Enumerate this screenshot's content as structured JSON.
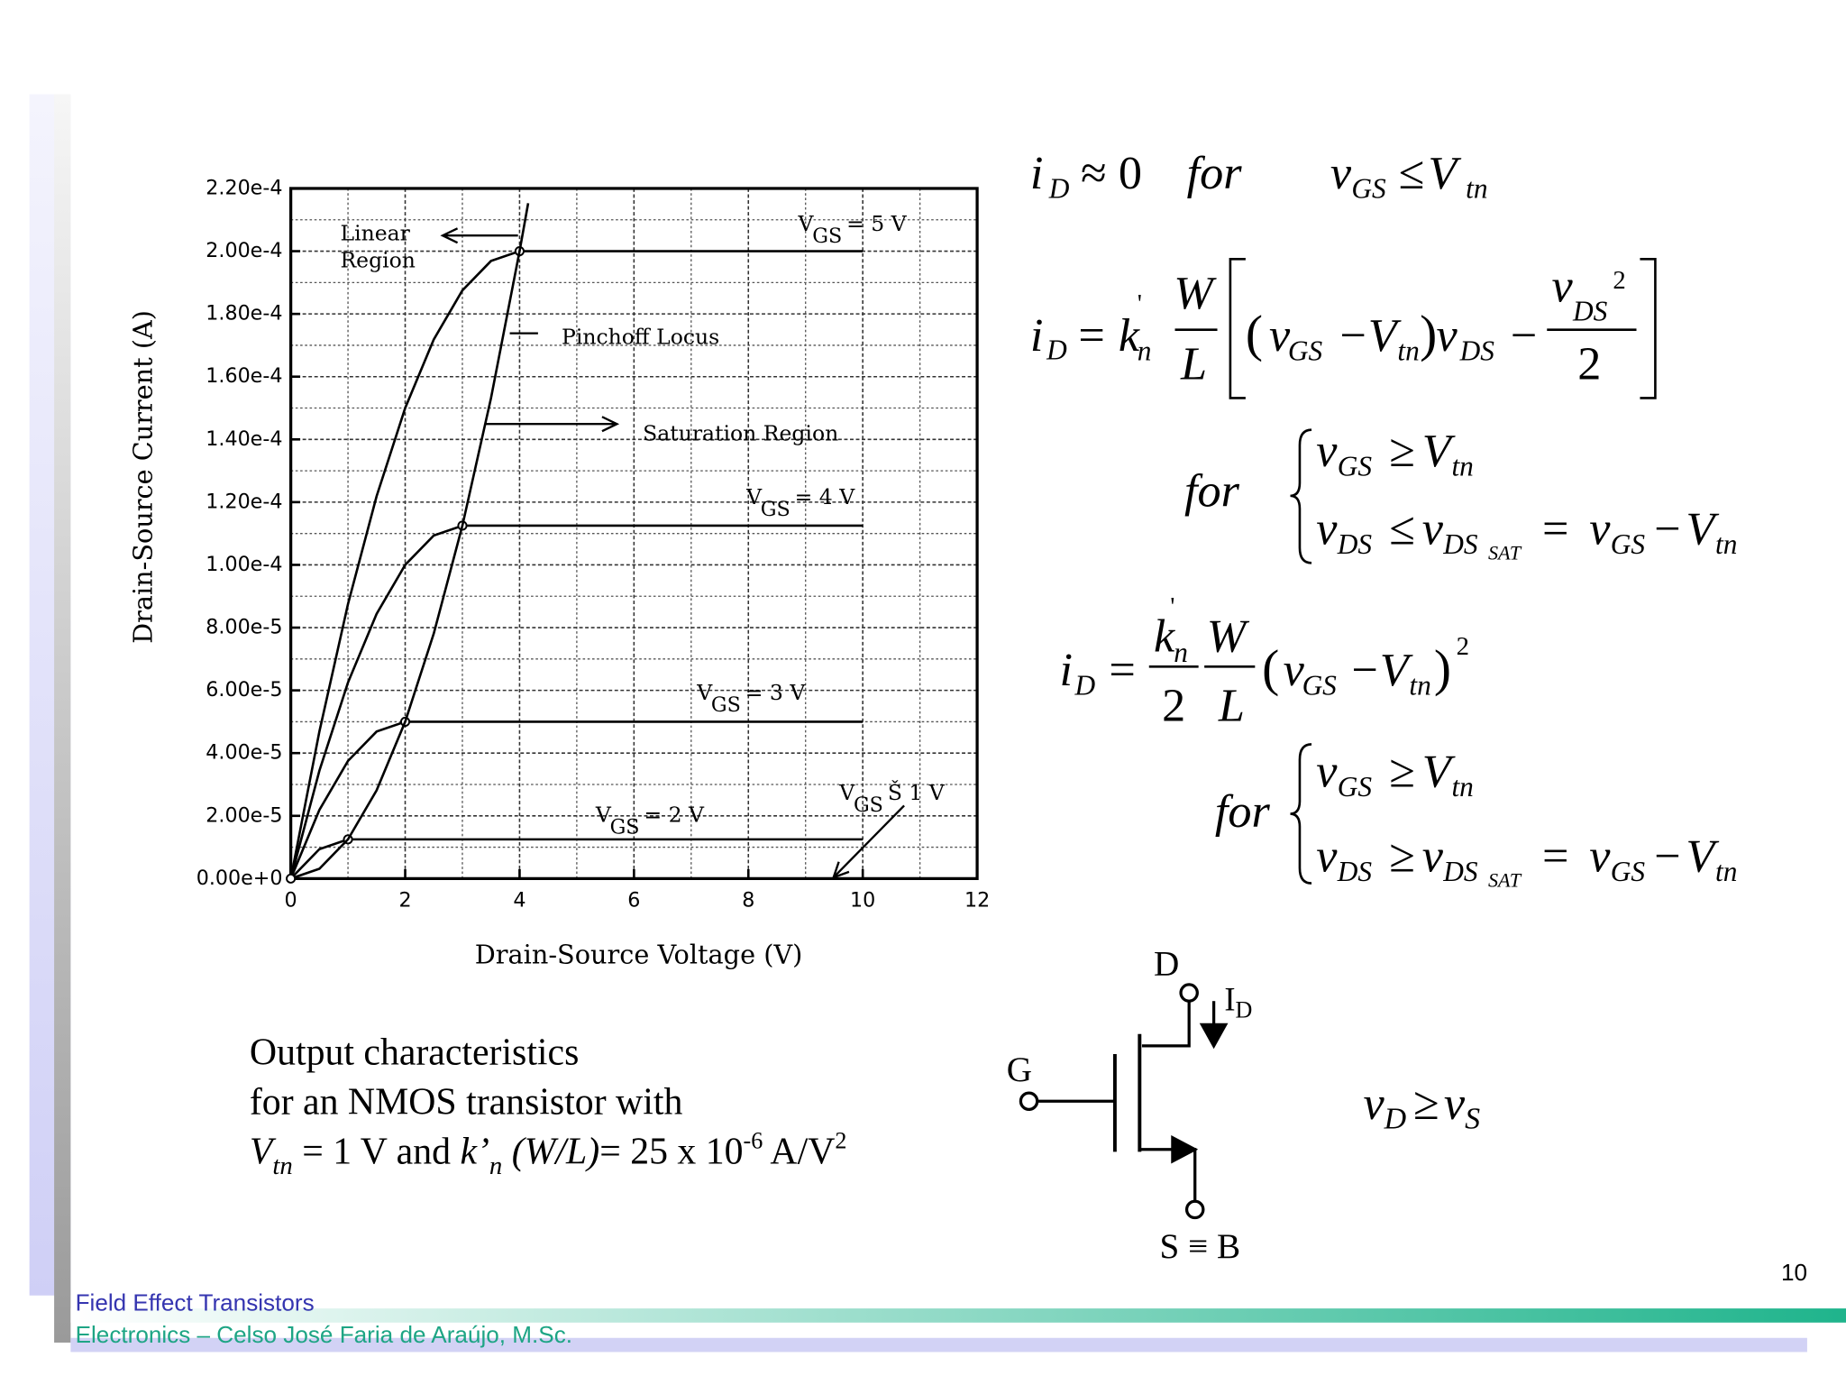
{
  "chart_data": {
    "type": "line",
    "xlabel": "Drain-Source Voltage (V)",
    "ylabel": "Drain-Source Current (A)",
    "xlim": [
      0,
      12
    ],
    "xticks": [
      0,
      2,
      4,
      6,
      8,
      10,
      12
    ],
    "xminor": [
      1,
      3,
      5,
      7,
      9,
      11
    ],
    "ylim": [
      0,
      0.00022
    ],
    "yticks": [
      {
        "value": 0,
        "label": "0.00e+0"
      },
      {
        "value": 2e-05,
        "label": "2.00e-5"
      },
      {
        "value": 4e-05,
        "label": "4.00e-5"
      },
      {
        "value": 6e-05,
        "label": "6.00e-5"
      },
      {
        "value": 8e-05,
        "label": "8.00e-5"
      },
      {
        "value": 0.0001,
        "label": "1.00e-4"
      },
      {
        "value": 0.00012,
        "label": "1.20e-4"
      },
      {
        "value": 0.00014,
        "label": "1.40e-4"
      },
      {
        "value": 0.00016,
        "label": "1.60e-4"
      },
      {
        "value": 0.00018,
        "label": "1.80e-4"
      },
      {
        "value": 0.0002,
        "label": "2.00e-4"
      },
      {
        "value": 0.00022,
        "label": "2.20e-4"
      }
    ],
    "yminor": [
      1e-05,
      3e-05,
      5e-05,
      7e-05,
      9e-05,
      0.00011,
      0.00013,
      0.00015,
      0.00017,
      0.00019,
      0.00021
    ],
    "grid": true,
    "x": [
      0,
      0.5,
      1,
      1.5,
      2,
      2.5,
      3,
      3.5,
      4,
      5,
      6,
      7,
      8,
      9,
      10
    ],
    "series": [
      {
        "label": [
          "V",
          "GS",
          "= 5 V"
        ],
        "color": "#000000",
        "values": [
          0,
          4.6875e-05,
          8.75e-05,
          0.000121875,
          0.00015,
          0.000171875,
          0.0001875,
          0.000196875,
          0.0002,
          0.0002,
          0.0002,
          0.0002,
          0.0002,
          0.0002,
          0.0002
        ]
      },
      {
        "label": [
          "V",
          "GS",
          "= 4 V"
        ],
        "color": "#000000",
        "values": [
          0,
          3.4375e-05,
          6.25e-05,
          8.4375e-05,
          0.0001,
          0.000109375,
          0.0001125,
          0.0001125,
          0.0001125,
          0.0001125,
          0.0001125,
          0.0001125,
          0.0001125,
          0.0001125,
          0.0001125
        ]
      },
      {
        "label": [
          "V",
          "GS",
          "= 3 V"
        ],
        "color": "#000000",
        "values": [
          0,
          2.1875e-05,
          3.75e-05,
          4.6875e-05,
          5e-05,
          5e-05,
          5e-05,
          5e-05,
          5e-05,
          5e-05,
          5e-05,
          5e-05,
          5e-05,
          5e-05,
          5e-05
        ]
      },
      {
        "label": [
          "V",
          "GS",
          "= 2 V"
        ],
        "color": "#000000",
        "values": [
          0,
          9.375e-06,
          1.25e-05,
          1.25e-05,
          1.25e-05,
          1.25e-05,
          1.25e-05,
          1.25e-05,
          1.25e-05,
          1.25e-05,
          1.25e-05,
          1.25e-05,
          1.25e-05,
          1.25e-05,
          1.25e-05
        ]
      }
    ],
    "pinchoff": {
      "name": "Pinchoff Locus",
      "color": "#000000",
      "x": [
        0,
        0.5,
        1,
        1.5,
        2,
        2.5,
        3,
        3.5,
        4,
        4.15
      ],
      "values": [
        0,
        3.125e-06,
        1.25e-05,
        2.8125e-05,
        5e-05,
        7.8125e-05,
        0.0001125,
        0.000153125,
        0.0002,
        0.00021528
      ]
    },
    "annotations": {
      "linear": [
        "Linear",
        "Region"
      ],
      "saturation": "Saturation Region",
      "vgs1": [
        "V",
        "GS",
        "Š 1 V"
      ]
    }
  },
  "equations": {
    "eq1": [
      "i",
      "D",
      "≈",
      "0",
      "for",
      "v",
      "GS",
      "≤",
      "V",
      "tn"
    ],
    "eq2": [
      "i",
      "D",
      "=",
      "k",
      "'",
      "n",
      "W",
      "L",
      "(",
      "v",
      "GS",
      "−",
      "V",
      "tn",
      ")",
      "v",
      "DS",
      "−",
      "v",
      "DS",
      "2",
      "2"
    ],
    "eq2_cond": [
      "for",
      [
        "v",
        "GS",
        "≥",
        "V",
        "tn"
      ],
      [
        "v",
        "DS",
        "≤",
        "v",
        "DS",
        "SAT",
        "=",
        "v",
        "GS",
        "−",
        "V",
        "tn"
      ]
    ],
    "eq3": [
      "i",
      "D",
      "=",
      "k",
      "'",
      "n",
      "2",
      "W",
      "L",
      "(",
      "v",
      "GS",
      "−",
      "V",
      "tn",
      ")",
      "2"
    ],
    "eq3_cond": [
      "for",
      [
        "v",
        "GS",
        "≥",
        "V",
        "tn"
      ],
      [
        "v",
        "DS",
        "≥",
        "v",
        "DS",
        "SAT",
        "=",
        "v",
        "GS",
        "−",
        "V",
        "tn"
      ]
    ]
  },
  "caption": [
    "Output characteristics",
    "for an NMOS transistor with",
    [
      "V",
      "tn",
      " = 1 V and ",
      "k’",
      "n",
      " (W/L)",
      "= 25 x 10",
      "-6",
      " A/V",
      "2"
    ]
  ],
  "circuit": {
    "D": "D",
    "G": "G",
    "SB": "S ≡ B",
    "ID": [
      "I",
      "D"
    ],
    "relation": [
      "v",
      "D",
      "≥",
      "v",
      "S"
    ]
  },
  "page_number": "10",
  "footer": {
    "title": "Field Effect Transistors",
    "author": "Electronics – Celso José Faria de Araújo, M.Sc."
  }
}
